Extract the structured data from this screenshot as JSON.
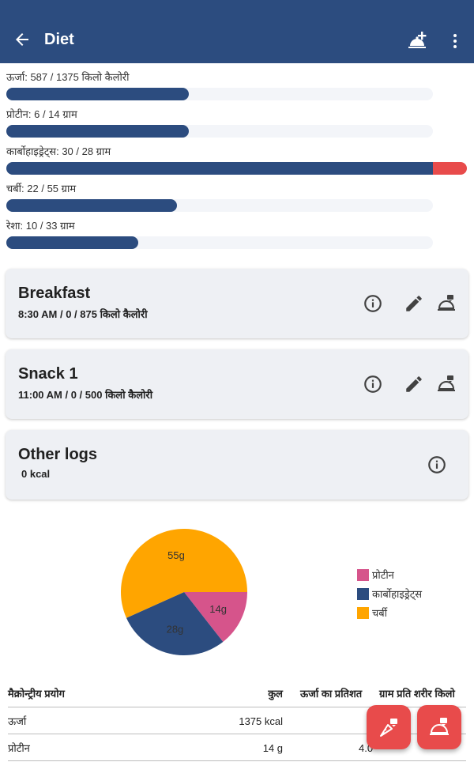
{
  "appbar": {
    "title": "Diet",
    "icons": {
      "back": "arrow-left-icon",
      "add": "add-meal-cloche-icon",
      "more": "more-vert-icon"
    },
    "color": "#2c4c7f"
  },
  "nutrients": [
    {
      "label": "ऊर्जा: 587 / 1375 किलो कैलोरी",
      "consumed": 587,
      "target": 1375,
      "progress": 0.427
    },
    {
      "label": "प्रोटीन: 6 / 14 ग्राम",
      "consumed": 6,
      "target": 14,
      "progress": 0.427
    },
    {
      "label": "कार्बोहाइड्रेट्स: 30 / 28 ग्राम",
      "consumed": 30,
      "target": 28,
      "progress": 1.0,
      "over_progress": 0.08
    },
    {
      "label": "चर्बी: 22 / 55 ग्राम",
      "consumed": 22,
      "target": 55,
      "progress": 0.4
    },
    {
      "label": "रेशा: 10 / 33 ग्राम",
      "consumed": 10,
      "target": 33,
      "progress": 0.31
    }
  ],
  "meals": [
    {
      "title": "Breakfast",
      "subtitle": "8:30 AM /  0 / 875 किलो कैलोरी",
      "icons": [
        "info-icon",
        "edit-icon",
        "cloche-log-icon"
      ]
    },
    {
      "title": "Snack 1",
      "subtitle": "11:00 AM /  0 / 500 किलो कैलोरी",
      "icons": [
        "info-icon",
        "edit-icon",
        "cloche-log-icon"
      ]
    },
    {
      "title": "Other logs",
      "subtitle": "0 kcal",
      "icons": [
        "info-icon"
      ]
    }
  ],
  "chart_data": {
    "type": "pie",
    "slices": [
      {
        "name": "प्रोटीन",
        "value": 14,
        "label": "14g",
        "color": "#d6548b"
      },
      {
        "name": "कार्बोहाइड्रेट्स",
        "value": 28,
        "label": "28g",
        "color": "#2c4c7f"
      },
      {
        "name": "चर्बी",
        "value": 55,
        "label": "55g",
        "color": "#ffa500"
      }
    ],
    "legend_position": "right"
  },
  "table": {
    "headers": [
      "मैक्रोन्ट्रीय प्रयोग",
      "कुल",
      "ऊर्जा का प्रतिशत",
      "ग्राम प्रति शरीर किलो"
    ],
    "rows": [
      [
        "ऊर्जा",
        "1375 kcal",
        "",
        ""
      ],
      [
        "प्रोटीन",
        "14 g",
        "4.0",
        ""
      ]
    ]
  },
  "fabs": {
    "food_icon": "carrot-log-icon",
    "meal_icon": "cloche-add-icon",
    "color": "#e84b4b"
  }
}
